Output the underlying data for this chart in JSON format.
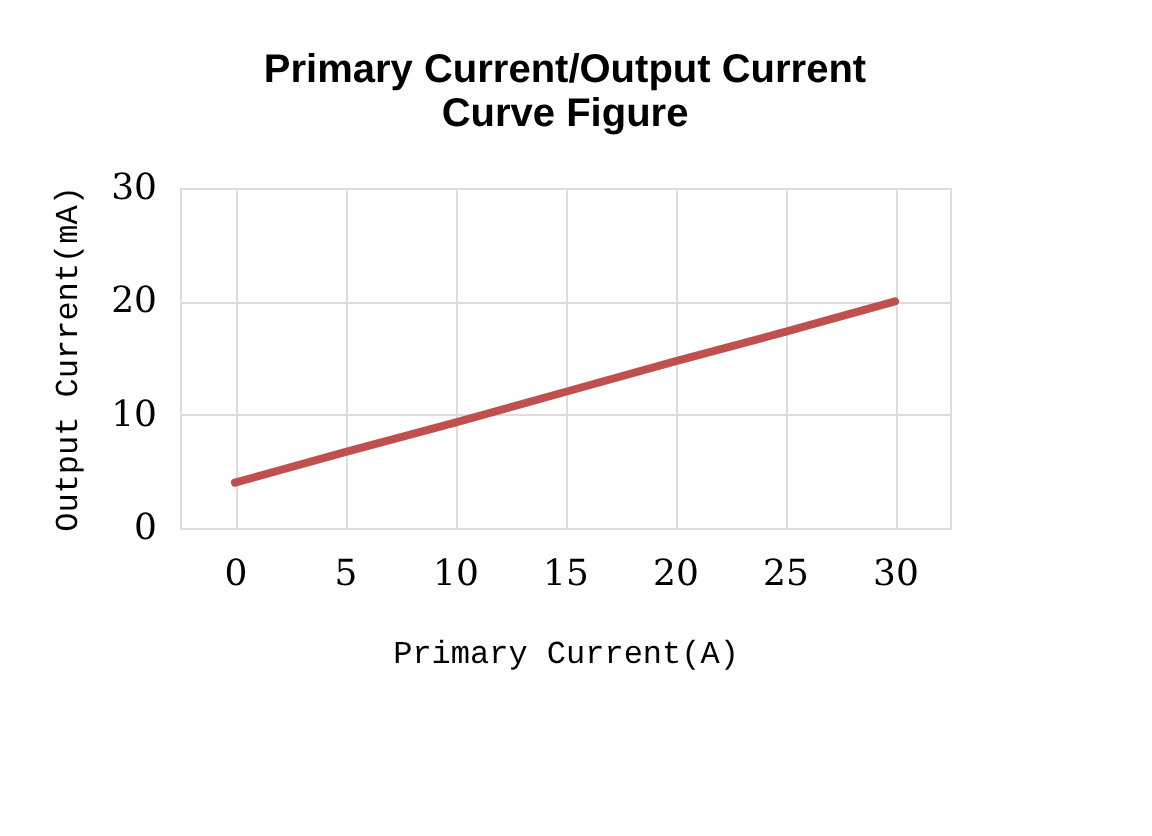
{
  "chart_data": {
    "type": "line",
    "title": "Primary Current/Output Current Curve Figure",
    "xlabel": "Primary Current(A)",
    "ylabel": "Output Current(mA)",
    "categories": [
      "0",
      "5",
      "10",
      "15",
      "20",
      "25",
      "30"
    ],
    "series": [
      {
        "color": "#c0504d",
        "values": [
          4,
          6.7,
          9.3,
          12,
          14.7,
          17.3,
          20
        ]
      }
    ],
    "ylim": [
      0,
      30
    ],
    "yticks": [
      0,
      10,
      20,
      30
    ],
    "grid": true
  }
}
